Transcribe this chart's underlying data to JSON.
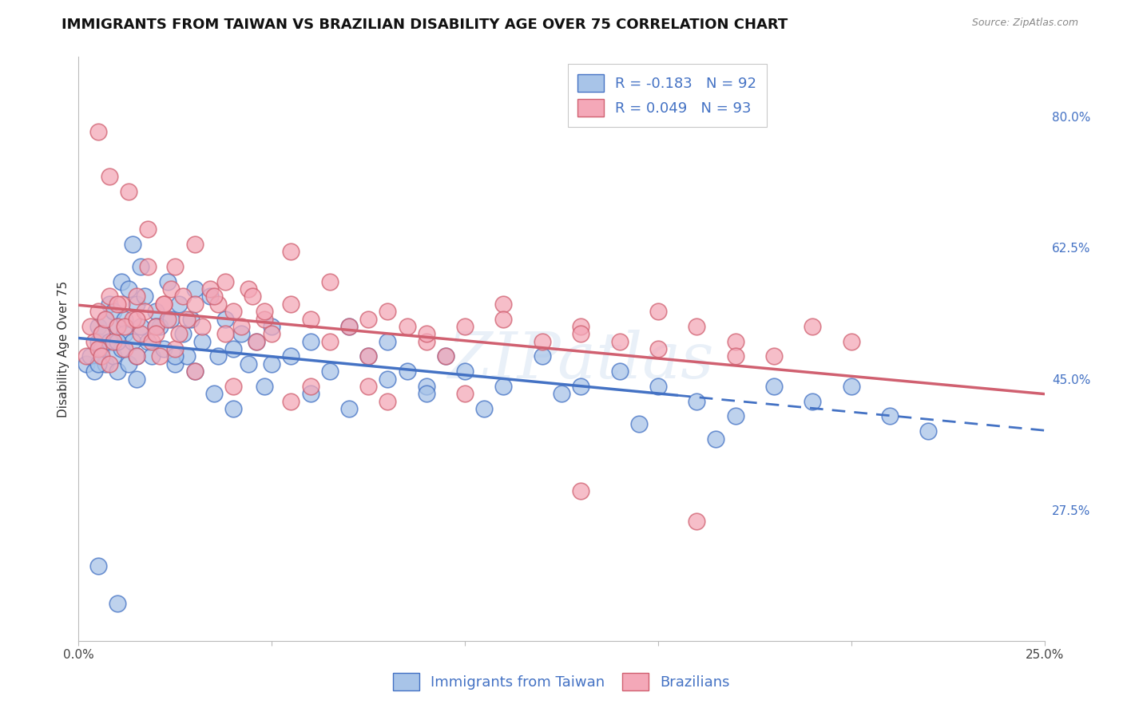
{
  "title": "IMMIGRANTS FROM TAIWAN VS BRAZILIAN DISABILITY AGE OVER 75 CORRELATION CHART",
  "source": "Source: ZipAtlas.com",
  "ylabel": "Disability Age Over 75",
  "xlim": [
    0.0,
    0.25
  ],
  "ylim": [
    0.1,
    0.88
  ],
  "x_ticks": [
    0.0,
    0.05,
    0.1,
    0.15,
    0.2,
    0.25
  ],
  "x_tick_labels": [
    "0.0%",
    "",
    "",
    "",
    "",
    "25.0%"
  ],
  "y_tick_labels_right": [
    "80.0%",
    "62.5%",
    "45.0%",
    "27.5%"
  ],
  "y_tick_positions_right": [
    0.8,
    0.625,
    0.45,
    0.275
  ],
  "taiwan_R": -0.183,
  "taiwan_N": 92,
  "brazil_R": 0.049,
  "brazil_N": 93,
  "taiwan_color": "#a8c4e8",
  "brazil_color": "#f4a8b8",
  "taiwan_line_color": "#4472c4",
  "brazil_line_color": "#d06070",
  "taiwan_line_solid_end": 0.155,
  "watermark": "ZIPatlas",
  "background_color": "#ffffff",
  "grid_color": "#cccccc",
  "title_fontsize": 13,
  "legend_fontsize": 13,
  "axis_label_fontsize": 11,
  "tick_fontsize": 11,
  "taiwan_scatter_x": [
    0.002,
    0.003,
    0.004,
    0.005,
    0.005,
    0.006,
    0.006,
    0.007,
    0.007,
    0.008,
    0.008,
    0.009,
    0.009,
    0.01,
    0.01,
    0.011,
    0.011,
    0.012,
    0.012,
    0.013,
    0.013,
    0.014,
    0.014,
    0.015,
    0.015,
    0.016,
    0.016,
    0.017,
    0.018,
    0.019,
    0.02,
    0.021,
    0.022,
    0.023,
    0.024,
    0.025,
    0.026,
    0.027,
    0.028,
    0.029,
    0.03,
    0.032,
    0.034,
    0.036,
    0.038,
    0.04,
    0.042,
    0.044,
    0.046,
    0.048,
    0.05,
    0.055,
    0.06,
    0.065,
    0.07,
    0.075,
    0.08,
    0.085,
    0.09,
    0.095,
    0.1,
    0.11,
    0.12,
    0.13,
    0.14,
    0.15,
    0.16,
    0.17,
    0.18,
    0.19,
    0.2,
    0.21,
    0.22,
    0.005,
    0.01,
    0.015,
    0.02,
    0.025,
    0.03,
    0.035,
    0.04,
    0.05,
    0.06,
    0.07,
    0.08,
    0.09,
    0.105,
    0.125,
    0.145,
    0.165,
    0.005,
    0.01
  ],
  "taiwan_scatter_y": [
    0.47,
    0.48,
    0.46,
    0.52,
    0.5,
    0.49,
    0.51,
    0.53,
    0.47,
    0.55,
    0.5,
    0.48,
    0.54,
    0.52,
    0.46,
    0.58,
    0.49,
    0.53,
    0.51,
    0.57,
    0.47,
    0.5,
    0.63,
    0.55,
    0.48,
    0.6,
    0.52,
    0.56,
    0.5,
    0.48,
    0.54,
    0.52,
    0.49,
    0.58,
    0.53,
    0.47,
    0.55,
    0.51,
    0.48,
    0.53,
    0.57,
    0.5,
    0.56,
    0.48,
    0.53,
    0.49,
    0.51,
    0.47,
    0.5,
    0.44,
    0.52,
    0.48,
    0.5,
    0.46,
    0.52,
    0.48,
    0.5,
    0.46,
    0.44,
    0.48,
    0.46,
    0.44,
    0.48,
    0.44,
    0.46,
    0.44,
    0.42,
    0.4,
    0.44,
    0.42,
    0.44,
    0.4,
    0.38,
    0.47,
    0.5,
    0.45,
    0.52,
    0.48,
    0.46,
    0.43,
    0.41,
    0.47,
    0.43,
    0.41,
    0.45,
    0.43,
    0.41,
    0.43,
    0.39,
    0.37,
    0.2,
    0.15
  ],
  "brazil_scatter_x": [
    0.002,
    0.003,
    0.004,
    0.005,
    0.005,
    0.006,
    0.006,
    0.007,
    0.008,
    0.009,
    0.01,
    0.011,
    0.012,
    0.013,
    0.014,
    0.015,
    0.016,
    0.017,
    0.018,
    0.019,
    0.02,
    0.021,
    0.022,
    0.023,
    0.024,
    0.025,
    0.026,
    0.027,
    0.028,
    0.03,
    0.032,
    0.034,
    0.036,
    0.038,
    0.04,
    0.042,
    0.044,
    0.046,
    0.048,
    0.05,
    0.055,
    0.06,
    0.065,
    0.07,
    0.075,
    0.08,
    0.085,
    0.09,
    0.095,
    0.1,
    0.11,
    0.12,
    0.13,
    0.14,
    0.15,
    0.16,
    0.17,
    0.18,
    0.19,
    0.2,
    0.008,
    0.012,
    0.018,
    0.022,
    0.03,
    0.038,
    0.045,
    0.055,
    0.065,
    0.075,
    0.09,
    0.11,
    0.13,
    0.15,
    0.17,
    0.005,
    0.01,
    0.015,
    0.025,
    0.035,
    0.048,
    0.06,
    0.08,
    0.1,
    0.13,
    0.16,
    0.008,
    0.015,
    0.02,
    0.03,
    0.04,
    0.055,
    0.075
  ],
  "brazil_scatter_y": [
    0.48,
    0.52,
    0.5,
    0.49,
    0.54,
    0.51,
    0.48,
    0.53,
    0.56,
    0.5,
    0.52,
    0.55,
    0.49,
    0.7,
    0.53,
    0.56,
    0.51,
    0.54,
    0.65,
    0.5,
    0.52,
    0.48,
    0.55,
    0.53,
    0.57,
    0.49,
    0.51,
    0.56,
    0.53,
    0.55,
    0.52,
    0.57,
    0.55,
    0.51,
    0.54,
    0.52,
    0.57,
    0.5,
    0.53,
    0.51,
    0.55,
    0.53,
    0.5,
    0.52,
    0.48,
    0.54,
    0.52,
    0.5,
    0.48,
    0.52,
    0.55,
    0.5,
    0.52,
    0.5,
    0.54,
    0.52,
    0.5,
    0.48,
    0.52,
    0.5,
    0.47,
    0.52,
    0.6,
    0.55,
    0.63,
    0.58,
    0.56,
    0.62,
    0.58,
    0.53,
    0.51,
    0.53,
    0.51,
    0.49,
    0.48,
    0.78,
    0.55,
    0.53,
    0.6,
    0.56,
    0.54,
    0.44,
    0.42,
    0.43,
    0.3,
    0.26,
    0.72,
    0.48,
    0.51,
    0.46,
    0.44,
    0.42,
    0.44
  ]
}
